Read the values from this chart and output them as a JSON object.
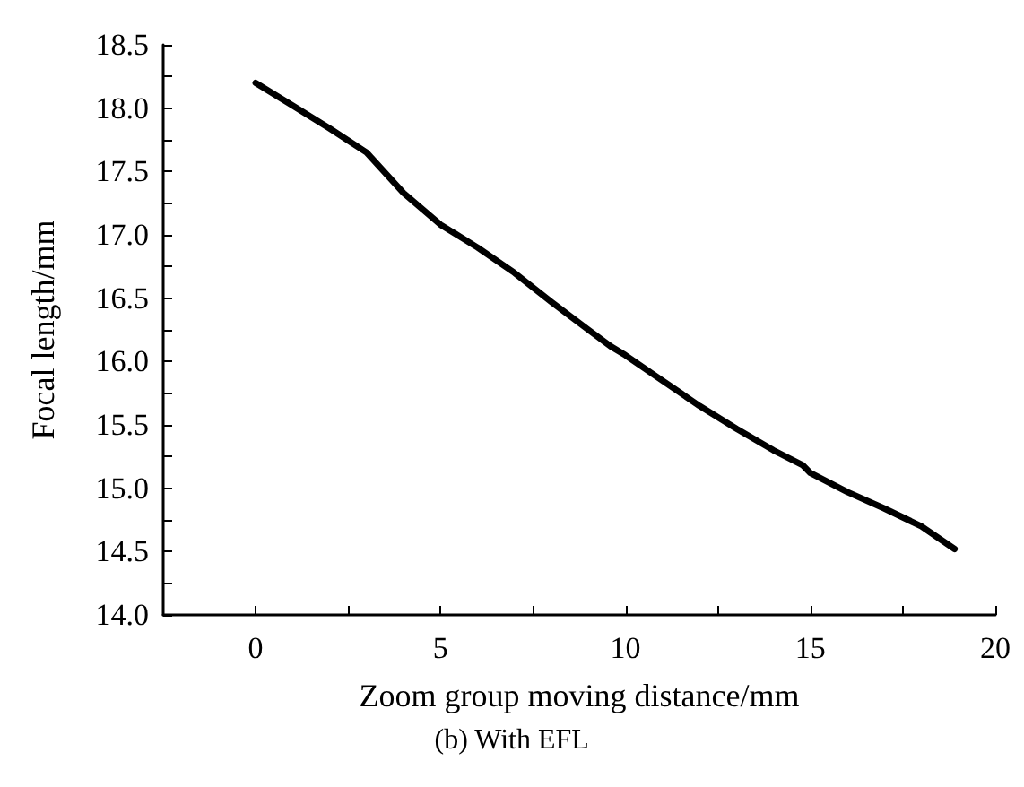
{
  "chart_data": {
    "type": "line",
    "xlabel": "Zoom group moving distance/mm",
    "ylabel": "Focal length/mm",
    "annotations": [
      "(b) With EFL"
    ],
    "x": [
      0,
      1,
      2,
      3,
      4,
      5,
      6,
      7,
      8,
      9,
      9.6,
      10,
      11,
      12,
      13,
      14,
      14.8,
      15,
      16,
      17,
      18,
      18.9
    ],
    "series": [
      {
        "color": "#000000",
        "values": [
          18.2,
          18.02,
          17.84,
          17.65,
          17.33,
          17.08,
          16.9,
          16.7,
          16.47,
          16.25,
          16.12,
          16.05,
          15.85,
          15.65,
          15.47,
          15.3,
          15.18,
          15.12,
          14.97,
          14.84,
          14.7,
          14.52
        ]
      }
    ],
    "xlim": [
      -2.5,
      20
    ],
    "xticks": [
      0,
      {
        "value": 2.5,
        "label": null
      },
      5,
      {
        "value": 7.5,
        "label": null
      },
      10,
      {
        "value": 12.5,
        "label": null
      },
      15,
      {
        "value": 17.5,
        "label": null
      },
      20
    ],
    "ylim": [
      14,
      18.5
    ],
    "yticks": [
      {
        "value": 14,
        "label": "14.0"
      },
      {
        "value": 14.25,
        "label": null
      },
      {
        "value": 14.5,
        "label": "14.5"
      },
      {
        "value": 14.75,
        "label": null
      },
      {
        "value": 15,
        "label": "15.0"
      },
      {
        "value": 15.25,
        "label": null
      },
      {
        "value": 15.5,
        "label": "15.5"
      },
      {
        "value": 15.75,
        "label": null
      },
      {
        "value": 16,
        "label": "16.0"
      },
      {
        "value": 16.25,
        "label": null
      },
      {
        "value": 16.5,
        "label": "16.5"
      },
      {
        "value": 16.75,
        "label": null
      },
      {
        "value": 17,
        "label": "17.0"
      },
      {
        "value": 17.25,
        "label": null
      },
      {
        "value": 17.5,
        "label": "17.5"
      },
      {
        "value": 17.75,
        "label": null
      },
      {
        "value": 18,
        "label": "18.0"
      },
      {
        "value": 18.25,
        "label": null
      },
      {
        "value": 18.5,
        "label": "18.5"
      }
    ],
    "marker": "none",
    "line_style": "solid"
  }
}
